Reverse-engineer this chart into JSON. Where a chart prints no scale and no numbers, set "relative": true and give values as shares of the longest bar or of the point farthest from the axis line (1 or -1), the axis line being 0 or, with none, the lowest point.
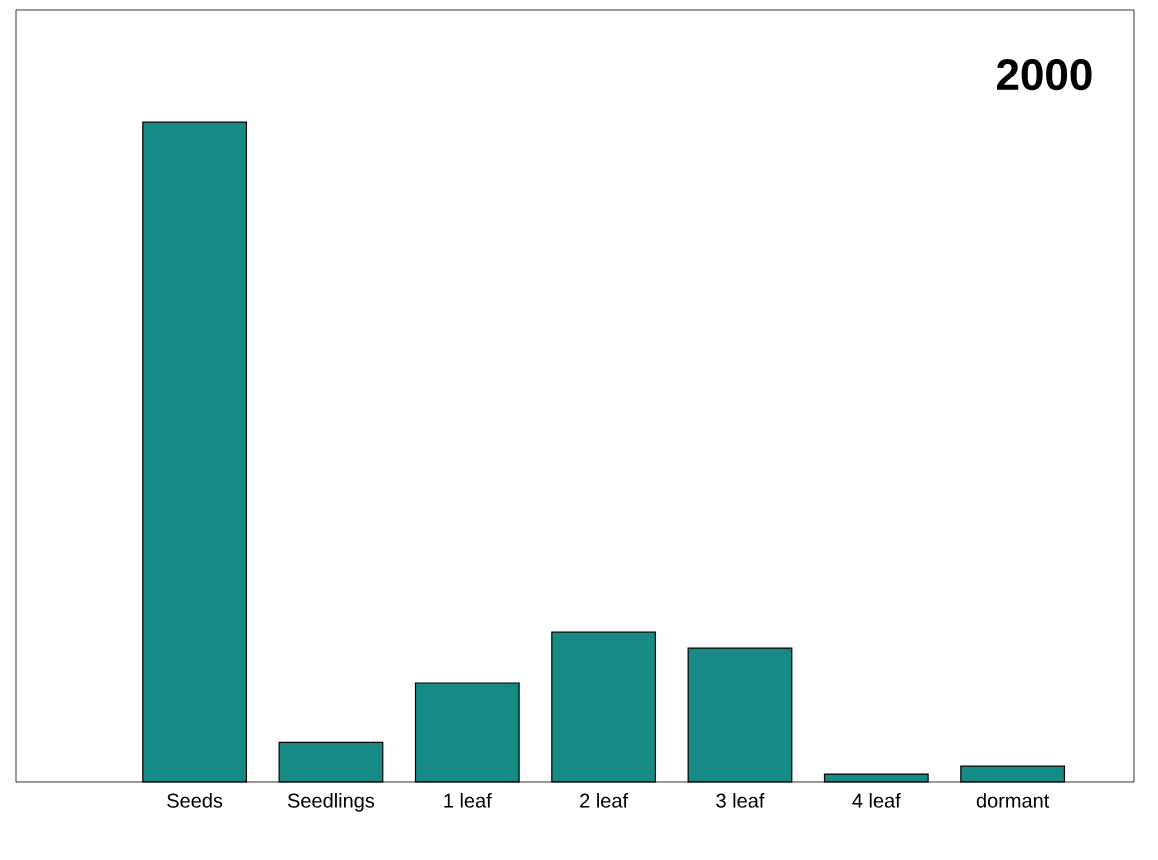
{
  "chart_data": {
    "type": "bar",
    "title": "2000",
    "relative": true,
    "categories": [
      "Seeds",
      "Seedlings",
      "1 leaf",
      "2 leaf",
      "3 leaf",
      "4 leaf",
      "dormant"
    ],
    "values": [
      1,
      0.06,
      0.15,
      0.227,
      0.203,
      0.012,
      0.024
    ],
    "color": "#168a85"
  }
}
